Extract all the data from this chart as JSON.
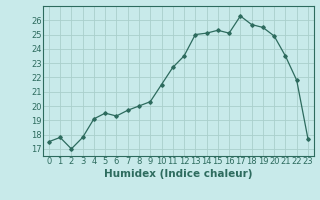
{
  "x": [
    0,
    1,
    2,
    3,
    4,
    5,
    6,
    7,
    8,
    9,
    10,
    11,
    12,
    13,
    14,
    15,
    16,
    17,
    18,
    19,
    20,
    21,
    22,
    23
  ],
  "y": [
    17.5,
    17.8,
    17.0,
    17.8,
    19.1,
    19.5,
    19.3,
    19.7,
    20.0,
    20.3,
    21.5,
    22.7,
    23.5,
    25.0,
    25.1,
    25.3,
    25.1,
    26.3,
    25.7,
    25.5,
    24.9,
    23.5,
    21.8,
    17.7
  ],
  "line_color": "#2d6b5e",
  "bg_color": "#c8eaea",
  "grid_color": "#aacfcc",
  "xlabel": "Humidex (Indice chaleur)",
  "ylim": [
    16.5,
    27.0
  ],
  "xlim": [
    -0.5,
    23.5
  ],
  "yticks": [
    17,
    18,
    19,
    20,
    21,
    22,
    23,
    24,
    25,
    26
  ],
  "xticks": [
    0,
    1,
    2,
    3,
    4,
    5,
    6,
    7,
    8,
    9,
    10,
    11,
    12,
    13,
    14,
    15,
    16,
    17,
    18,
    19,
    20,
    21,
    22,
    23
  ],
  "marker": "D",
  "marker_size": 1.8,
  "line_width": 0.9,
  "xlabel_fontsize": 7.5,
  "tick_fontsize": 6.0
}
